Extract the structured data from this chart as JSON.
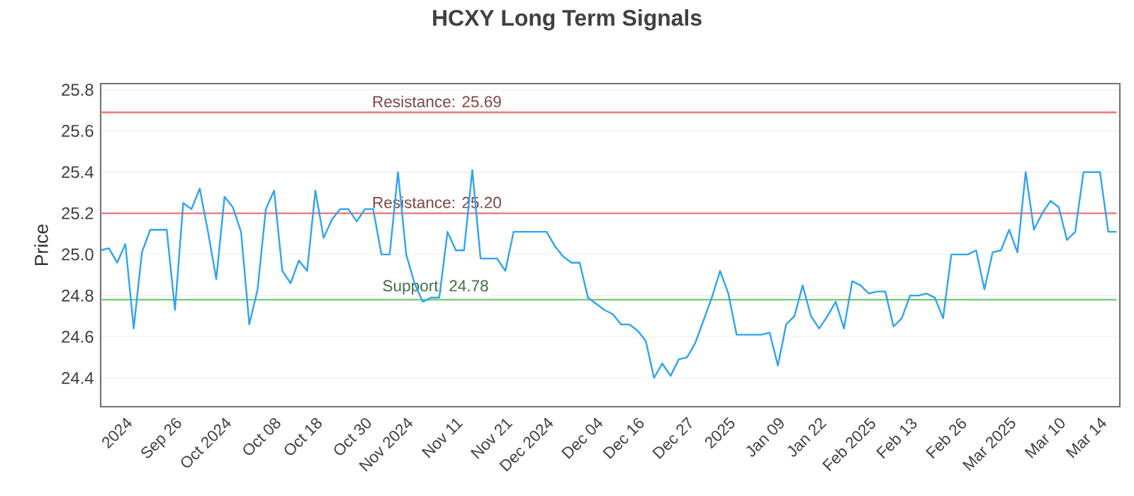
{
  "chart_data": {
    "type": "line",
    "title": "HCXY Long Term Signals",
    "ylabel": "Price",
    "categories": [
      null,
      null,
      null,
      "2024",
      null,
      null,
      null,
      null,
      null,
      "Sep 26",
      null,
      null,
      null,
      null,
      null,
      "Oct 2024",
      null,
      null,
      null,
      null,
      null,
      "Oct 08",
      null,
      null,
      null,
      null,
      "Oct 18",
      null,
      null,
      null,
      null,
      null,
      "Oct 30",
      null,
      null,
      null,
      null,
      "Nov 2024",
      null,
      null,
      null,
      null,
      null,
      "Nov 11",
      null,
      null,
      null,
      null,
      null,
      "Nov 21",
      null,
      null,
      null,
      null,
      "Dec 2024",
      null,
      null,
      null,
      null,
      null,
      "Dec 04",
      null,
      null,
      null,
      null,
      "Dec 16",
      null,
      null,
      null,
      null,
      null,
      "Dec 27",
      null,
      null,
      null,
      null,
      "2025",
      null,
      null,
      null,
      null,
      null,
      "Jan 09",
      null,
      null,
      null,
      null,
      "Jan 22",
      null,
      null,
      null,
      null,
      null,
      "Feb 2025",
      null,
      null,
      null,
      null,
      "Feb 13",
      null,
      null,
      null,
      null,
      null,
      "Feb 26",
      null,
      null,
      null,
      null,
      null,
      "Mar 2025",
      null,
      null,
      null,
      null,
      null,
      "Mar 10",
      null,
      null,
      null,
      null,
      "Mar 14",
      null,
      null
    ],
    "series": [
      {
        "color": "#2ea3f2",
        "values": [
          25.02,
          25.03,
          24.96,
          25.05,
          24.64,
          25.01,
          25.12,
          25.12,
          25.12,
          24.73,
          25.25,
          25.22,
          25.32,
          25.11,
          24.88,
          25.28,
          25.23,
          25.11,
          24.66,
          24.83,
          25.22,
          25.31,
          24.92,
          24.86,
          24.97,
          24.92,
          25.31,
          25.08,
          25.17,
          25.22,
          25.22,
          25.16,
          25.22,
          25.22,
          25.0,
          25.0,
          25.4,
          25.0,
          24.86,
          24.77,
          24.79,
          24.79,
          25.11,
          25.02,
          25.02,
          25.41,
          24.98,
          24.98,
          24.98,
          24.92,
          25.11,
          25.11,
          25.11,
          25.11,
          25.11,
          25.04,
          24.99,
          24.96,
          24.96,
          24.79,
          24.76,
          24.73,
          24.71,
          24.66,
          24.66,
          24.63,
          24.58,
          24.4,
          24.47,
          24.41,
          24.49,
          24.5,
          24.57,
          24.68,
          24.79,
          24.92,
          24.81,
          24.61,
          24.61,
          24.61,
          24.61,
          24.62,
          24.46,
          24.66,
          24.7,
          24.85,
          24.7,
          24.64,
          24.7,
          24.77,
          24.64,
          24.87,
          24.85,
          24.81,
          24.82,
          24.82,
          24.65,
          24.69,
          24.8,
          24.8,
          24.81,
          24.79,
          24.69,
          25.0,
          25.0,
          25.0,
          25.02,
          24.83,
          25.01,
          25.02,
          25.12,
          25.01,
          25.4,
          25.12,
          25.2,
          25.26,
          25.23,
          25.07,
          25.11,
          25.4,
          25.4,
          25.4,
          25.11,
          25.11
        ]
      }
    ],
    "ylim": [
      24.26,
      25.83
    ],
    "yticks": [
      24.4,
      24.6,
      24.8,
      {
        "value": 25.0,
        "label": "25.0"
      },
      25.2,
      25.4,
      25.6,
      25.8
    ],
    "grid": "y",
    "ref_lines": [
      {
        "axis": "y",
        "value": 25.69,
        "label": "Resistance: 25.69",
        "color": "#e88080"
      },
      {
        "axis": "y",
        "value": 25.2,
        "label": "Resistance: 25.20",
        "color": "#e88080"
      },
      {
        "axis": "y",
        "value": 24.78,
        "label": "Support: 24.78",
        "color": "#7fc97f"
      }
    ]
  }
}
